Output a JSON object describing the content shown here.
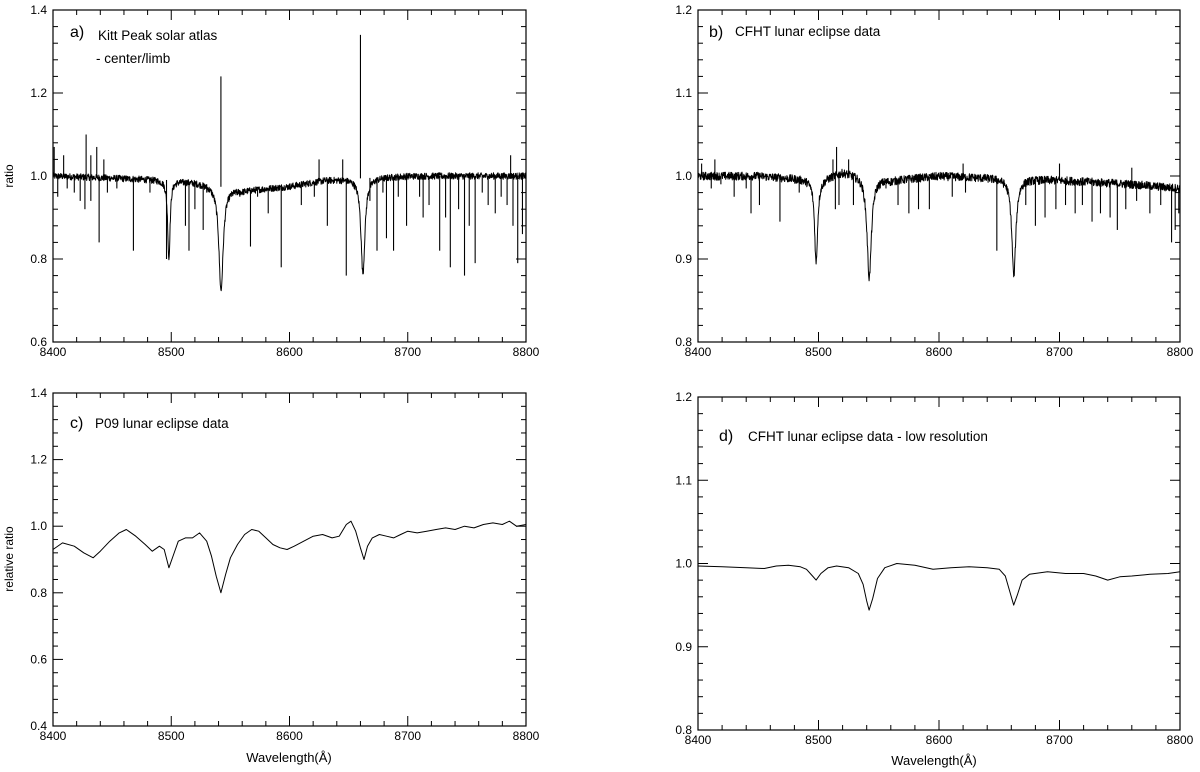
{
  "chart_data": [
    {
      "id": "a",
      "type": "line",
      "title": "a)",
      "annotation": [
        "Kitt Peak solar atlas",
        "- center/limb"
      ],
      "xlabel": "",
      "ylabel": "ratio",
      "xlim": [
        8400,
        8800
      ],
      "ylim": [
        0.6,
        1.4
      ],
      "xticks": [
        "8400",
        "8500",
        "8600",
        "8700",
        "8800"
      ],
      "yticks": [
        "0.6",
        "0.8",
        "1.0",
        "1.2",
        "1.4"
      ],
      "grid": false,
      "baseline": [
        [
          8400,
          1.0
        ],
        [
          8450,
          0.995
        ],
        [
          8500,
          0.99
        ],
        [
          8520,
          0.985
        ],
        [
          8560,
          0.965
        ],
        [
          8600,
          0.975
        ],
        [
          8630,
          0.99
        ],
        [
          8700,
          1.0
        ],
        [
          8750,
          1.0
        ],
        [
          8800,
          1.0
        ]
      ],
      "noise": 0.008,
      "broad_lines": [
        {
          "center": 8498.0,
          "depth": 0.19,
          "width": 1.2
        },
        {
          "center": 8542.1,
          "depth": 0.25,
          "width": 2.2
        },
        {
          "center": 8662.1,
          "depth": 0.23,
          "width": 2.0
        }
      ],
      "narrow_lines": [
        {
          "x": 8404,
          "y": 0.95
        },
        {
          "x": 8412,
          "y": 0.97
        },
        {
          "x": 8418,
          "y": 0.96
        },
        {
          "x": 8423,
          "y": 0.94
        },
        {
          "x": 8427,
          "y": 0.92
        },
        {
          "x": 8432,
          "y": 0.94
        },
        {
          "x": 8439,
          "y": 0.84
        },
        {
          "x": 8446,
          "y": 0.96
        },
        {
          "x": 8454,
          "y": 0.97
        },
        {
          "x": 8468,
          "y": 0.82
        },
        {
          "x": 8482,
          "y": 0.96
        },
        {
          "x": 8496,
          "y": 0.8
        },
        {
          "x": 8512,
          "y": 0.88
        },
        {
          "x": 8515,
          "y": 0.82
        },
        {
          "x": 8520,
          "y": 0.92
        },
        {
          "x": 8527,
          "y": 0.87
        },
        {
          "x": 8530,
          "y": 0.96
        },
        {
          "x": 8558,
          "y": 0.95
        },
        {
          "x": 8567,
          "y": 0.83
        },
        {
          "x": 8573,
          "y": 0.95
        },
        {
          "x": 8582,
          "y": 0.91
        },
        {
          "x": 8593,
          "y": 0.78
        },
        {
          "x": 8610,
          "y": 0.93
        },
        {
          "x": 8621,
          "y": 0.95
        },
        {
          "x": 8632,
          "y": 0.88
        },
        {
          "x": 8648,
          "y": 0.76
        },
        {
          "x": 8668,
          "y": 0.94
        },
        {
          "x": 8674,
          "y": 0.82
        },
        {
          "x": 8679,
          "y": 0.96
        },
        {
          "x": 8682,
          "y": 0.85
        },
        {
          "x": 8688,
          "y": 0.82
        },
        {
          "x": 8692,
          "y": 0.95
        },
        {
          "x": 8699,
          "y": 0.88
        },
        {
          "x": 8710,
          "y": 0.95
        },
        {
          "x": 8713,
          "y": 0.9
        },
        {
          "x": 8718,
          "y": 0.93
        },
        {
          "x": 8727,
          "y": 0.82
        },
        {
          "x": 8732,
          "y": 0.9
        },
        {
          "x": 8736,
          "y": 0.78
        },
        {
          "x": 8743,
          "y": 0.92
        },
        {
          "x": 8748,
          "y": 0.76
        },
        {
          "x": 8752,
          "y": 0.88
        },
        {
          "x": 8757,
          "y": 0.79
        },
        {
          "x": 8763,
          "y": 0.96
        },
        {
          "x": 8768,
          "y": 0.93
        },
        {
          "x": 8774,
          "y": 0.91
        },
        {
          "x": 8779,
          "y": 0.95
        },
        {
          "x": 8784,
          "y": 0.93
        },
        {
          "x": 8789,
          "y": 0.88
        },
        {
          "x": 8793,
          "y": 0.79
        },
        {
          "x": 8797,
          "y": 0.86
        }
      ],
      "up_spikes": [
        {
          "x": 8401,
          "y": 1.07
        },
        {
          "x": 8409,
          "y": 1.05
        },
        {
          "x": 8428,
          "y": 1.1
        },
        {
          "x": 8432,
          "y": 1.05
        },
        {
          "x": 8437,
          "y": 1.07
        },
        {
          "x": 8443,
          "y": 1.04
        },
        {
          "x": 8542,
          "y": 1.24
        },
        {
          "x": 8625,
          "y": 1.04
        },
        {
          "x": 8645,
          "y": 1.04
        },
        {
          "x": 8660,
          "y": 1.34
        },
        {
          "x": 8787,
          "y": 1.05
        }
      ]
    },
    {
      "id": "b",
      "type": "line",
      "title": "b)",
      "annotation": [
        "CFHT lunar eclipse data"
      ],
      "xlabel": "",
      "ylabel": "",
      "xlim": [
        8400,
        8800
      ],
      "ylim": [
        0.8,
        1.2
      ],
      "xticks": [
        "8400",
        "8500",
        "8600",
        "8700",
        "8800"
      ],
      "yticks": [
        "0.8",
        "0.9",
        "1.0",
        "1.1",
        "1.2"
      ],
      "grid": false,
      "baseline": [
        [
          8400,
          1.0
        ],
        [
          8450,
          1.0
        ],
        [
          8500,
          0.995
        ],
        [
          8520,
          1.005
        ],
        [
          8560,
          0.995
        ],
        [
          8600,
          1.0
        ],
        [
          8640,
          0.998
        ],
        [
          8700,
          0.995
        ],
        [
          8760,
          0.99
        ],
        [
          8800,
          0.985
        ]
      ],
      "noise": 0.005,
      "broad_lines": [
        {
          "center": 8498.0,
          "depth": 0.1,
          "width": 1.5
        },
        {
          "center": 8542.1,
          "depth": 0.122,
          "width": 2.2
        },
        {
          "center": 8662.1,
          "depth": 0.117,
          "width": 2.0
        }
      ],
      "narrow_lines": [
        {
          "x": 8411,
          "y": 0.985
        },
        {
          "x": 8419,
          "y": 0.99
        },
        {
          "x": 8430,
          "y": 0.975
        },
        {
          "x": 8440,
          "y": 0.985
        },
        {
          "x": 8444,
          "y": 0.955
        },
        {
          "x": 8451,
          "y": 0.965
        },
        {
          "x": 8468,
          "y": 0.945
        },
        {
          "x": 8484,
          "y": 0.98
        },
        {
          "x": 8514,
          "y": 0.96
        },
        {
          "x": 8517,
          "y": 0.965
        },
        {
          "x": 8529,
          "y": 0.965
        },
        {
          "x": 8556,
          "y": 0.985
        },
        {
          "x": 8566,
          "y": 0.965
        },
        {
          "x": 8575,
          "y": 0.955
        },
        {
          "x": 8583,
          "y": 0.96
        },
        {
          "x": 8592,
          "y": 0.96
        },
        {
          "x": 8611,
          "y": 0.975
        },
        {
          "x": 8622,
          "y": 0.98
        },
        {
          "x": 8648,
          "y": 0.91
        },
        {
          "x": 8672,
          "y": 0.965
        },
        {
          "x": 8680,
          "y": 0.94
        },
        {
          "x": 8688,
          "y": 0.95
        },
        {
          "x": 8697,
          "y": 0.96
        },
        {
          "x": 8705,
          "y": 0.965
        },
        {
          "x": 8713,
          "y": 0.955
        },
        {
          "x": 8719,
          "y": 0.965
        },
        {
          "x": 8727,
          "y": 0.945
        },
        {
          "x": 8734,
          "y": 0.955
        },
        {
          "x": 8742,
          "y": 0.95
        },
        {
          "x": 8748,
          "y": 0.935
        },
        {
          "x": 8755,
          "y": 0.96
        },
        {
          "x": 8764,
          "y": 0.97
        },
        {
          "x": 8775,
          "y": 0.955
        },
        {
          "x": 8784,
          "y": 0.965
        },
        {
          "x": 8793,
          "y": 0.92
        },
        {
          "x": 8796,
          "y": 0.935
        },
        {
          "x": 8799,
          "y": 0.955
        }
      ],
      "up_spikes": [
        {
          "x": 8403,
          "y": 1.015
        },
        {
          "x": 8414,
          "y": 1.02
        },
        {
          "x": 8512,
          "y": 1.02
        },
        {
          "x": 8515,
          "y": 1.035
        },
        {
          "x": 8525,
          "y": 1.02
        },
        {
          "x": 8620,
          "y": 1.015
        },
        {
          "x": 8700,
          "y": 1.015
        },
        {
          "x": 8760,
          "y": 1.01
        }
      ]
    },
    {
      "id": "c",
      "type": "line",
      "title": "c)",
      "annotation": [
        "P09 lunar eclipse data"
      ],
      "xlabel": "Wavelength(Å)",
      "ylabel": "relative ratio",
      "xlim": [
        8400,
        8800
      ],
      "ylim": [
        0.4,
        1.4
      ],
      "xticks": [
        "8400",
        "8500",
        "8600",
        "8700",
        "8800"
      ],
      "yticks": [
        "0.4",
        "0.6",
        "0.8",
        "1.0",
        "1.2",
        "1.4"
      ],
      "grid": false,
      "x": [
        8400,
        8408,
        8418,
        8426,
        8434,
        8440,
        8448,
        8456,
        8462,
        8470,
        8478,
        8484,
        8490,
        8494,
        8498,
        8502,
        8506,
        8512,
        8518,
        8524,
        8530,
        8534,
        8538,
        8542,
        8546,
        8550,
        8556,
        8562,
        8568,
        8574,
        8580,
        8586,
        8592,
        8598,
        8604,
        8612,
        8620,
        8628,
        8636,
        8642,
        8648,
        8652,
        8656,
        8660,
        8663,
        8666,
        8670,
        8676,
        8682,
        8688,
        8694,
        8700,
        8708,
        8716,
        8724,
        8732,
        8740,
        8748,
        8756,
        8764,
        8772,
        8780,
        8786,
        8792,
        8800
      ],
      "y": [
        0.93,
        0.95,
        0.94,
        0.92,
        0.905,
        0.925,
        0.955,
        0.98,
        0.99,
        0.97,
        0.945,
        0.925,
        0.94,
        0.93,
        0.875,
        0.915,
        0.955,
        0.965,
        0.965,
        0.98,
        0.955,
        0.91,
        0.85,
        0.8,
        0.855,
        0.905,
        0.945,
        0.975,
        0.99,
        0.985,
        0.965,
        0.945,
        0.935,
        0.93,
        0.94,
        0.955,
        0.97,
        0.975,
        0.965,
        0.97,
        1.005,
        1.015,
        0.985,
        0.935,
        0.9,
        0.94,
        0.965,
        0.975,
        0.97,
        0.965,
        0.975,
        0.985,
        0.98,
        0.985,
        0.99,
        0.995,
        0.99,
        1.0,
        0.995,
        1.005,
        1.01,
        1.005,
        1.015,
        1.0,
        1.005
      ]
    },
    {
      "id": "d",
      "type": "line",
      "title": "d)",
      "annotation": [
        "CFHT lunar eclipse data - low resolution"
      ],
      "xlabel": "Wavelength(Å)",
      "ylabel": "",
      "xlim": [
        8400,
        8800
      ],
      "ylim": [
        0.8,
        1.2
      ],
      "xticks": [
        "8400",
        "8500",
        "8600",
        "8700",
        "8800"
      ],
      "yticks": [
        "0.8",
        "0.9",
        "1.0",
        "1.1",
        "1.2"
      ],
      "grid": false,
      "x": [
        8400,
        8420,
        8440,
        8455,
        8465,
        8475,
        8485,
        8490,
        8495,
        8498,
        8502,
        8508,
        8515,
        8525,
        8533,
        8537,
        8540,
        8542,
        8545,
        8549,
        8555,
        8565,
        8580,
        8595,
        8610,
        8625,
        8640,
        8650,
        8655,
        8659,
        8662,
        8665,
        8669,
        8675,
        8690,
        8705,
        8720,
        8730,
        8740,
        8750,
        8760,
        8775,
        8790,
        8800
      ],
      "y": [
        0.997,
        0.996,
        0.995,
        0.994,
        0.997,
        0.998,
        0.996,
        0.993,
        0.985,
        0.98,
        0.988,
        0.995,
        0.997,
        0.995,
        0.988,
        0.975,
        0.955,
        0.944,
        0.958,
        0.982,
        0.995,
        1.0,
        0.998,
        0.993,
        0.995,
        0.996,
        0.995,
        0.993,
        0.985,
        0.965,
        0.95,
        0.962,
        0.98,
        0.987,
        0.99,
        0.988,
        0.988,
        0.985,
        0.98,
        0.984,
        0.985,
        0.987,
        0.988,
        0.99
      ]
    }
  ]
}
